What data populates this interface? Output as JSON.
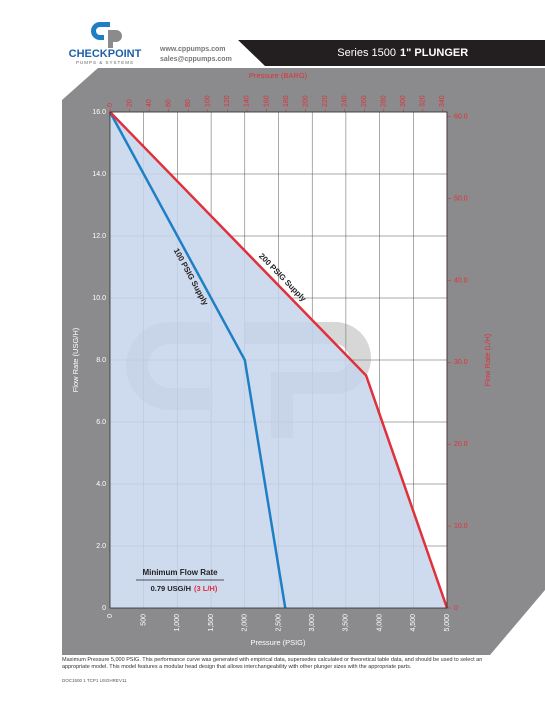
{
  "header": {
    "brand": "CHECKPOINT",
    "tagline": "PUMPS & SYSTEMS",
    "web": "www.cppumps.com",
    "email": "sales@cppumps.com",
    "series": "Series 1500",
    "model": "1\" PLUNGER"
  },
  "chart_data": {
    "type": "line",
    "xlabel": "Pressure (PSIG)",
    "x2label": "Pressure (BARG)",
    "ylabel": "Flow Rate (USG/H)",
    "y2label": "Flow Rate (L/H)",
    "xlim": [
      0,
      5000
    ],
    "xticks": [
      0,
      500,
      {
        "value": 1000,
        "label": "1,000"
      },
      {
        "value": 1500,
        "label": "1,500"
      },
      {
        "value": 2000,
        "label": "2,000"
      },
      {
        "value": 2500,
        "label": "2,500"
      },
      {
        "value": 3000,
        "label": "3,000"
      },
      {
        "value": 3500,
        "label": "3,500"
      },
      {
        "value": 4000,
        "label": "4,000"
      },
      {
        "value": 4500,
        "label": "4,500"
      },
      {
        "value": 5000,
        "label": "5,000"
      }
    ],
    "x2lim": [
      0,
      344.7
    ],
    "x2ticks": [
      0,
      20,
      40,
      60,
      80,
      100,
      120,
      140,
      160,
      180,
      200,
      220,
      240,
      260,
      280,
      300,
      320,
      340
    ],
    "ylim": [
      0,
      16
    ],
    "yticks": [
      0,
      {
        "value": 2,
        "label": "2.0"
      },
      {
        "value": 4,
        "label": "4.0"
      },
      {
        "value": 6,
        "label": "6.0"
      },
      {
        "value": 8,
        "label": "8.0"
      },
      {
        "value": 10,
        "label": "10.0"
      },
      {
        "value": 12,
        "label": "12.0"
      },
      {
        "value": 14,
        "label": "14.0"
      },
      {
        "value": 16,
        "label": "16.0"
      }
    ],
    "y2lim": [
      0,
      60.57
    ],
    "y2ticks": [
      0,
      {
        "value": 10,
        "label": "10.0"
      },
      {
        "value": 20,
        "label": "20.0"
      },
      {
        "value": 30,
        "label": "30.0"
      },
      {
        "value": 40,
        "label": "40.0"
      },
      {
        "value": 50,
        "label": "50.0"
      },
      {
        "value": 60,
        "label": "60.0"
      }
    ],
    "grid": true,
    "series": [
      {
        "name": "100 PSIG Supply",
        "color": "#1f7fc4",
        "x": [
          0,
          2000,
          2600
        ],
        "values": [
          16,
          8,
          0
        ]
      },
      {
        "name": "200 PSIG Supply",
        "color": "#e0303a",
        "x": [
          0,
          3800,
          5000
        ],
        "values": [
          16,
          7.5,
          0
        ]
      }
    ],
    "annotation": {
      "title": "Minimum Flow Rate",
      "value": "0.79 USG/H",
      "metric": "(3 L/H)"
    }
  },
  "footer": {
    "note": "Maximum Pressure 5,000 PSIG. This performance curve was generated with empirical data, supersedes calculated or theoretical table data, and should be used to select an appropriate model. This model features a modular head design that allows interchangeability with other plunger sizes with the appropriate parts.",
    "doc": "DOC1500 1 TCP1 USGHREV11"
  }
}
